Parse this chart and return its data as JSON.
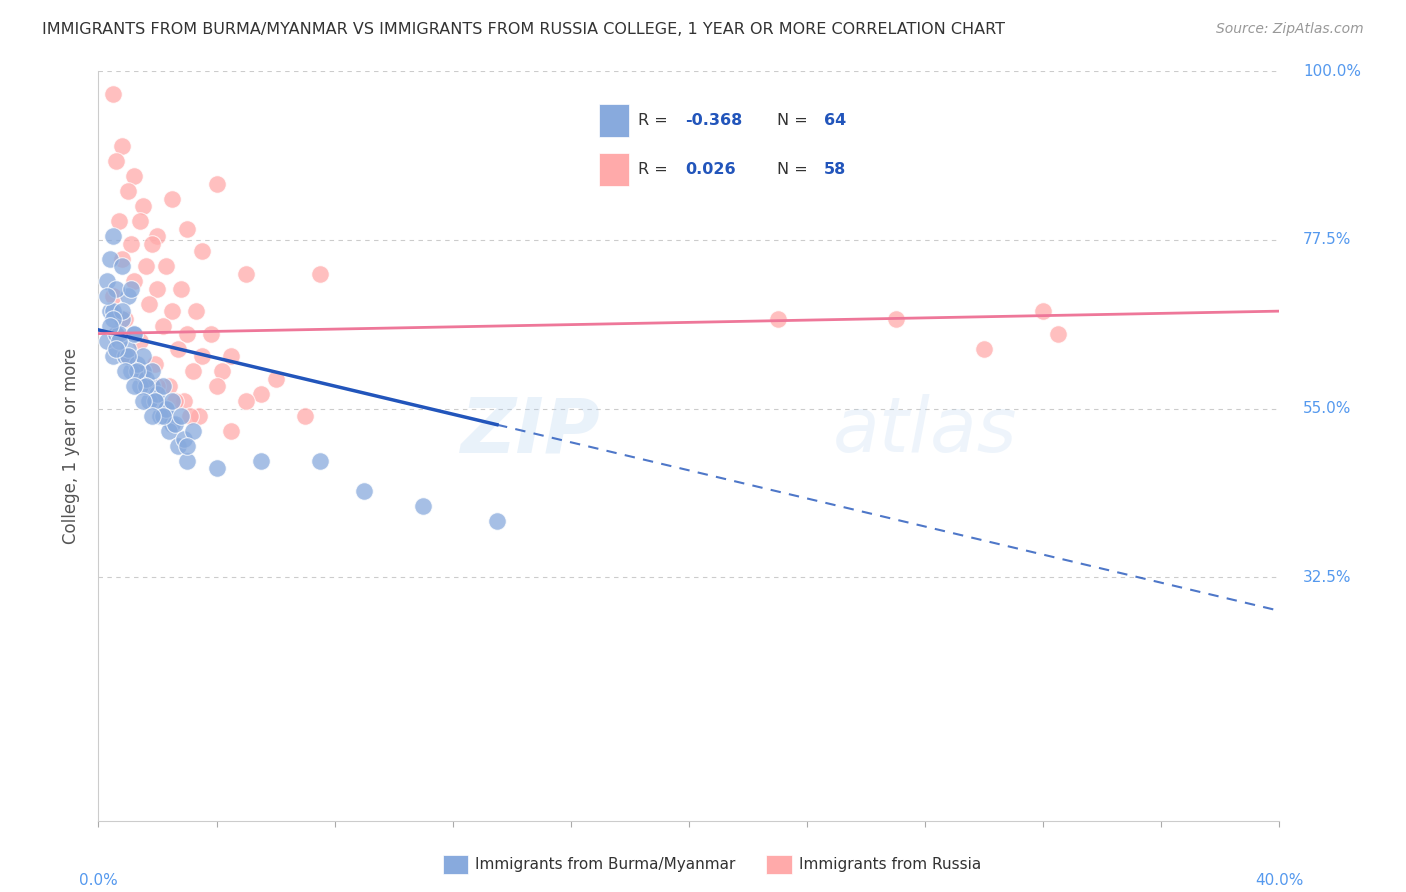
{
  "title": "IMMIGRANTS FROM BURMA/MYANMAR VS IMMIGRANTS FROM RUSSIA COLLEGE, 1 YEAR OR MORE CORRELATION CHART",
  "source": "Source: ZipAtlas.com",
  "ylabel": "College, 1 year or more",
  "legend_blue_r": "-0.368",
  "legend_blue_n": "64",
  "legend_pink_r": "0.026",
  "legend_pink_n": "58",
  "legend_label_blue": "Immigrants from Burma/Myanmar",
  "legend_label_pink": "Immigrants from Russia",
  "blue_color": "#88AADD",
  "pink_color": "#FFAAAA",
  "blue_line_color": "#2255BB",
  "pink_line_color": "#EE7799",
  "background_color": "#FFFFFF",
  "grid_color": "#CCCCCC",
  "axis_label_color": "#5599EE",
  "watermark_zip_color": "#AACCEE",
  "watermark_atlas_color": "#AACCEE",
  "blue_scatter_x": [
    0.3,
    0.5,
    0.8,
    1.0,
    1.2,
    1.5,
    1.8,
    2.0,
    2.3,
    2.5,
    0.4,
    0.6,
    0.9,
    1.1,
    1.4,
    1.7,
    2.1,
    2.4,
    2.7,
    3.0,
    0.3,
    0.5,
    0.7,
    1.0,
    1.3,
    1.6,
    2.0,
    2.3,
    2.6,
    2.9,
    0.4,
    0.6,
    0.8,
    1.2,
    1.5,
    1.8,
    2.2,
    2.5,
    2.8,
    3.2,
    0.3,
    0.5,
    0.7,
    1.0,
    1.3,
    1.6,
    1.9,
    2.2,
    3.0,
    4.0,
    0.4,
    0.6,
    0.9,
    1.2,
    1.5,
    1.8,
    5.5,
    9.0,
    11.0,
    13.5,
    0.5,
    0.8,
    1.1,
    7.5
  ],
  "blue_scatter_y": [
    64,
    62,
    67,
    70,
    65,
    60,
    58,
    56,
    55,
    53,
    68,
    65,
    62,
    60,
    58,
    56,
    54,
    52,
    50,
    48,
    72,
    68,
    65,
    63,
    61,
    59,
    57,
    55,
    53,
    51,
    75,
    71,
    68,
    65,
    62,
    60,
    58,
    56,
    54,
    52,
    70,
    67,
    64,
    62,
    60,
    58,
    56,
    54,
    50,
    47,
    66,
    63,
    60,
    58,
    56,
    54,
    48,
    44,
    42,
    40,
    78,
    74,
    71,
    48
  ],
  "pink_scatter_x": [
    0.5,
    0.8,
    1.2,
    1.5,
    2.0,
    2.5,
    3.0,
    3.5,
    4.0,
    5.0,
    0.6,
    1.0,
    1.4,
    1.8,
    2.3,
    2.8,
    3.3,
    3.8,
    4.5,
    6.0,
    0.7,
    1.1,
    1.6,
    2.0,
    2.5,
    3.0,
    3.5,
    4.2,
    5.5,
    7.0,
    0.8,
    1.2,
    1.7,
    2.2,
    2.7,
    3.2,
    4.0,
    5.0,
    7.5,
    27.0,
    0.5,
    0.9,
    1.4,
    1.9,
    2.4,
    2.9,
    3.4,
    4.5,
    32.0,
    30.0,
    0.6,
    1.0,
    1.5,
    2.0,
    2.6,
    3.1,
    23.0,
    32.5
  ],
  "pink_scatter_y": [
    97,
    90,
    86,
    82,
    78,
    83,
    79,
    76,
    85,
    73,
    88,
    84,
    80,
    77,
    74,
    71,
    68,
    65,
    62,
    59,
    80,
    77,
    74,
    71,
    68,
    65,
    62,
    60,
    57,
    54,
    75,
    72,
    69,
    66,
    63,
    60,
    58,
    56,
    73,
    67,
    70,
    67,
    64,
    61,
    58,
    56,
    54,
    52,
    68,
    63,
    65,
    62,
    60,
    58,
    56,
    54,
    67,
    65
  ],
  "xlim": [
    0,
    40
  ],
  "ylim": [
    0,
    100
  ],
  "blue_line_x0": 0,
  "blue_line_y0": 65.5,
  "blue_line_x1": 40,
  "blue_line_y1": 28,
  "blue_solid_end_x": 13.5,
  "pink_line_x0": 0,
  "pink_line_y0": 65.0,
  "pink_line_x1": 40,
  "pink_line_y1": 68.0
}
